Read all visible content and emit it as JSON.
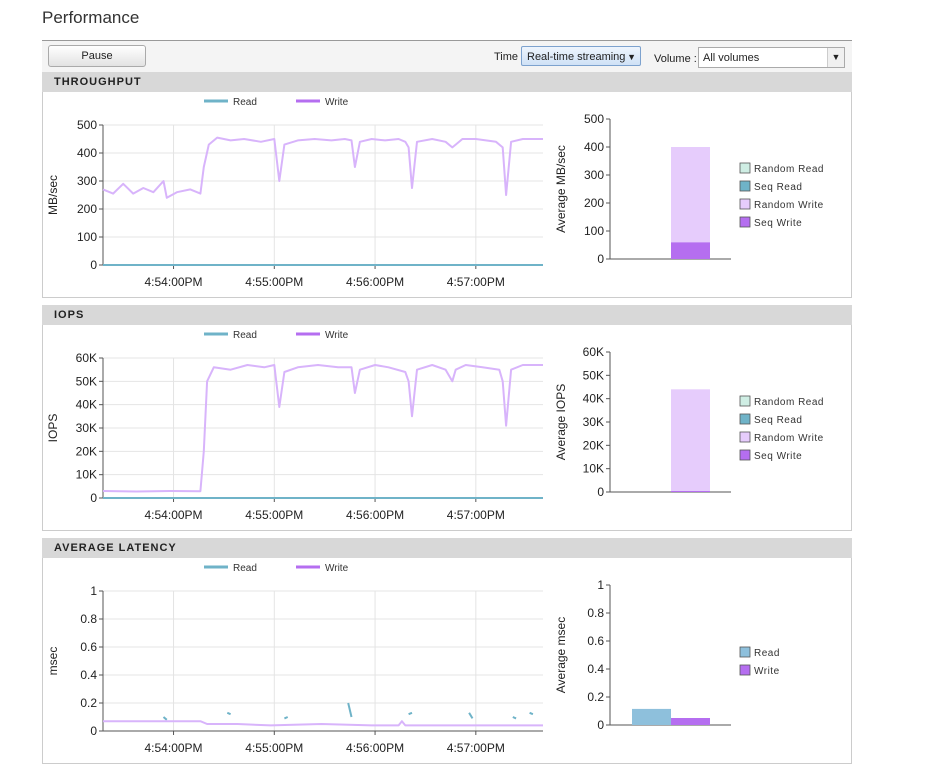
{
  "page": {
    "title": "Performance"
  },
  "toolbar": {
    "pause_label": "Pause",
    "time_label": "Time",
    "time_value": "Real-time streaming",
    "volume_label": "Volume :",
    "volume_value": "All volumes"
  },
  "colors": {
    "read": "#6fb3c8",
    "write": "#b56ef0",
    "write_light": "#d8b4fb",
    "random_write_fill": "#e6ccfc",
    "seq_write_fill": "#b56ef0",
    "read_bar": "#8ec0dc",
    "random_read_fill": "#cfeee4",
    "seq_read_fill": "#6fb3c8"
  },
  "legend": {
    "read": "Read",
    "write": "Write"
  },
  "sections": {
    "throughput": {
      "title": "THROUGHPUT",
      "bar_legend": [
        "Random Read",
        "Seq Read",
        "Random Write",
        "Seq Write"
      ]
    },
    "iops": {
      "title": "IOPS",
      "bar_legend": [
        "Random Read",
        "Seq Read",
        "Random Write",
        "Seq Write"
      ]
    },
    "latency": {
      "title": "AVERAGE LATENCY",
      "bar_legend": [
        "Read",
        "Write"
      ]
    }
  },
  "chart_data": [
    {
      "id": "throughput_line",
      "type": "line",
      "ylabel": "MB/sec",
      "ylim": [
        0,
        500
      ],
      "y_ticks": [
        "0",
        "100",
        "200",
        "300",
        "400",
        "500"
      ],
      "x_ticks": [
        "4:54:00PM",
        "4:55:00PM",
        "4:56:00PM",
        "4:57:00PM"
      ],
      "x_tick_seconds": [
        42,
        102,
        162,
        222
      ],
      "xlim_seconds": [
        0,
        262
      ],
      "series": [
        {
          "name": "Read",
          "points": [
            [
              0,
              0
            ],
            [
              262,
              0
            ]
          ]
        },
        {
          "name": "Write",
          "points": [
            [
              0,
              270
            ],
            [
              6,
              255
            ],
            [
              12,
              290
            ],
            [
              18,
              255
            ],
            [
              24,
              275
            ],
            [
              30,
              260
            ],
            [
              36,
              300
            ],
            [
              38,
              240
            ],
            [
              44,
              260
            ],
            [
              52,
              270
            ],
            [
              58,
              255
            ],
            [
              60,
              350
            ],
            [
              63,
              430
            ],
            [
              68,
              455
            ],
            [
              76,
              445
            ],
            [
              84,
              450
            ],
            [
              94,
              440
            ],
            [
              102,
              450
            ],
            [
              105,
              300
            ],
            [
              108,
              430
            ],
            [
              116,
              445
            ],
            [
              126,
              450
            ],
            [
              136,
              445
            ],
            [
              144,
              450
            ],
            [
              148,
              445
            ],
            [
              150,
              350
            ],
            [
              153,
              440
            ],
            [
              160,
              450
            ],
            [
              168,
              445
            ],
            [
              176,
              450
            ],
            [
              180,
              440
            ],
            [
              182,
              420
            ],
            [
              184,
              275
            ],
            [
              187,
              440
            ],
            [
              196,
              450
            ],
            [
              204,
              440
            ],
            [
              208,
              420
            ],
            [
              210,
              430
            ],
            [
              214,
              450
            ],
            [
              222,
              450
            ],
            [
              234,
              440
            ],
            [
              238,
              420
            ],
            [
              240,
              250
            ],
            [
              243,
              440
            ],
            [
              250,
              450
            ],
            [
              262,
              450
            ]
          ]
        }
      ]
    },
    {
      "id": "throughput_bar",
      "type": "bar",
      "ylabel": "Average MB/sec",
      "ylim": [
        0,
        500
      ],
      "y_ticks": [
        "0",
        "100",
        "200",
        "300",
        "400",
        "500"
      ],
      "stack": [
        {
          "name": "Random Read",
          "value": 0
        },
        {
          "name": "Seq Read",
          "value": 0
        },
        {
          "name": "Seq Write",
          "value": 60
        },
        {
          "name": "Random Write",
          "value": 340
        }
      ]
    },
    {
      "id": "iops_line",
      "type": "line",
      "ylabel": "IOPS",
      "ylim": [
        0,
        60000
      ],
      "y_ticks": [
        "0",
        "10K",
        "20K",
        "30K",
        "40K",
        "50K",
        "60K"
      ],
      "x_ticks": [
        "4:54:00PM",
        "4:55:00PM",
        "4:56:00PM",
        "4:57:00PM"
      ],
      "x_tick_seconds": [
        42,
        102,
        162,
        222
      ],
      "xlim_seconds": [
        0,
        262
      ],
      "series": [
        {
          "name": "Read",
          "points": [
            [
              0,
              0
            ],
            [
              262,
              0
            ]
          ]
        },
        {
          "name": "Write",
          "points": [
            [
              0,
              3000
            ],
            [
              20,
              2800
            ],
            [
              40,
              3000
            ],
            [
              58,
              2900
            ],
            [
              60,
              20000
            ],
            [
              62,
              50000
            ],
            [
              66,
              56000
            ],
            [
              76,
              55000
            ],
            [
              86,
              57000
            ],
            [
              96,
              56000
            ],
            [
              102,
              57000
            ],
            [
              105,
              39000
            ],
            [
              108,
              54000
            ],
            [
              116,
              56000
            ],
            [
              128,
              57000
            ],
            [
              140,
              56000
            ],
            [
              148,
              56000
            ],
            [
              150,
              45000
            ],
            [
              153,
              55000
            ],
            [
              162,
              57000
            ],
            [
              170,
              56000
            ],
            [
              180,
              54000
            ],
            [
              182,
              50000
            ],
            [
              184,
              35000
            ],
            [
              187,
              55000
            ],
            [
              196,
              57000
            ],
            [
              204,
              55000
            ],
            [
              208,
              50000
            ],
            [
              210,
              55000
            ],
            [
              216,
              57000
            ],
            [
              226,
              56000
            ],
            [
              236,
              55000
            ],
            [
              238,
              50000
            ],
            [
              240,
              31000
            ],
            [
              243,
              55000
            ],
            [
              250,
              57000
            ],
            [
              262,
              57000
            ]
          ]
        }
      ]
    },
    {
      "id": "iops_bar",
      "type": "bar",
      "ylabel": "Average IOPS",
      "ylim": [
        0,
        60000
      ],
      "y_ticks": [
        "0",
        "10K",
        "20K",
        "30K",
        "40K",
        "50K",
        "60K"
      ],
      "stack": [
        {
          "name": "Random Read",
          "value": 0
        },
        {
          "name": "Seq Read",
          "value": 0
        },
        {
          "name": "Seq Write",
          "value": 500
        },
        {
          "name": "Random Write",
          "value": 43500
        }
      ]
    },
    {
      "id": "latency_line",
      "type": "line",
      "ylabel": "msec",
      "ylim": [
        0,
        1
      ],
      "y_ticks": [
        "0",
        "0.2",
        "0.4",
        "0.6",
        "0.8",
        "1"
      ],
      "x_ticks": [
        "4:54:00PM",
        "4:55:00PM",
        "4:56:00PM",
        "4:57:00PM"
      ],
      "x_tick_seconds": [
        42,
        102,
        162,
        222
      ],
      "xlim_seconds": [
        0,
        262
      ],
      "series": [
        {
          "name": "Read",
          "segments": [
            [
              [
                36,
                0.1
              ],
              [
                38,
                0.08
              ]
            ],
            [
              [
                74,
                0.13
              ],
              [
                76,
                0.12
              ]
            ],
            [
              [
                108,
                0.09
              ],
              [
                110,
                0.1
              ]
            ],
            [
              [
                146,
                0.2
              ],
              [
                148,
                0.1
              ]
            ],
            [
              [
                182,
                0.12
              ],
              [
                184,
                0.13
              ]
            ],
            [
              [
                218,
                0.13
              ],
              [
                220,
                0.09
              ]
            ],
            [
              [
                244,
                0.1
              ],
              [
                246,
                0.09
              ]
            ],
            [
              [
                254,
                0.13
              ],
              [
                256,
                0.12
              ]
            ]
          ]
        },
        {
          "name": "Write",
          "points": [
            [
              0,
              0.07
            ],
            [
              30,
              0.07
            ],
            [
              58,
              0.07
            ],
            [
              62,
              0.05
            ],
            [
              80,
              0.05
            ],
            [
              100,
              0.04
            ],
            [
              130,
              0.05
            ],
            [
              160,
              0.04
            ],
            [
              176,
              0.04
            ],
            [
              178,
              0.07
            ],
            [
              180,
              0.04
            ],
            [
              200,
              0.04
            ],
            [
              230,
              0.04
            ],
            [
              262,
              0.04
            ]
          ]
        }
      ]
    },
    {
      "id": "latency_bar",
      "type": "bar",
      "ylabel": "Average msec",
      "ylim": [
        0,
        1
      ],
      "y_ticks": [
        "0",
        "0.2",
        "0.4",
        "0.6",
        "0.8",
        "1"
      ],
      "bars": [
        {
          "name": "Read",
          "value": 0.115
        },
        {
          "name": "Write",
          "value": 0.05
        }
      ]
    }
  ]
}
